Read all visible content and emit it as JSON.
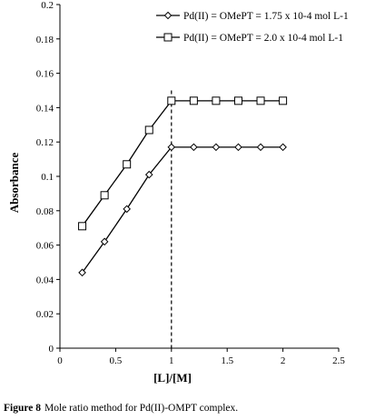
{
  "caption": {
    "label": "Figure 8",
    "text": "Mole ratio method for Pd(II)-OMPT complex."
  },
  "chart_data": {
    "type": "line",
    "xlabel": "[L]/[M]",
    "ylabel": "Absorbance",
    "xlim": [
      0,
      2.5
    ],
    "ylim": [
      0,
      0.2
    ],
    "xticks": [
      "0",
      "0.5",
      "1",
      "1.5",
      "2",
      "2.5"
    ],
    "yticks": [
      "0",
      "0.02",
      "0.04",
      "0.06",
      "0.08",
      "0.1",
      "0.12",
      "0.14",
      "0.16",
      "0.18",
      "0.2"
    ],
    "grid": false,
    "legend_position": "top-right",
    "vertical_reference_line": 1,
    "series": [
      {
        "name": "Pd(II) = OMePT = 1.75 x 10-4 mol L-1",
        "marker": "diamond",
        "x": [
          0.2,
          0.4,
          0.6,
          0.8,
          1.0,
          1.2,
          1.4,
          1.6,
          1.8,
          2.0
        ],
        "y": [
          0.044,
          0.062,
          0.081,
          0.101,
          0.117,
          0.117,
          0.117,
          0.117,
          0.117,
          0.117
        ]
      },
      {
        "name": "Pd(II) = OMePT = 2.0 x 10-4 mol L-1",
        "marker": "square",
        "x": [
          0.2,
          0.4,
          0.6,
          0.8,
          1.0,
          1.2,
          1.4,
          1.6,
          1.8,
          2.0
        ],
        "y": [
          0.071,
          0.089,
          0.107,
          0.127,
          0.144,
          0.144,
          0.144,
          0.144,
          0.144,
          0.144
        ]
      }
    ]
  }
}
